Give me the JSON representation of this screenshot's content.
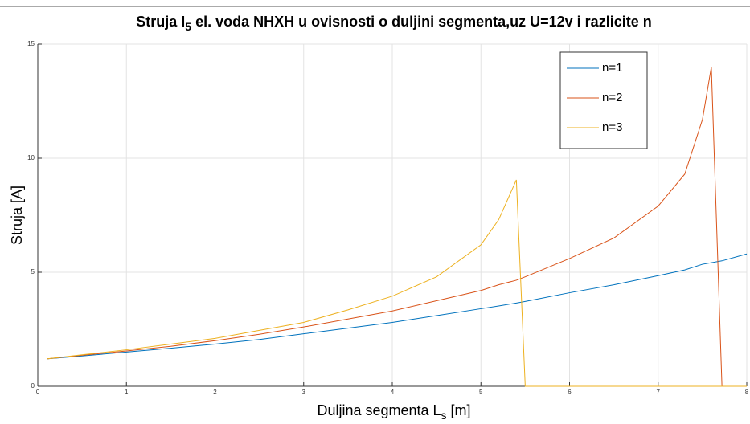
{
  "chart_data": {
    "type": "line",
    "title": [
      "Struja I",
      "5",
      " el. voda NHXH u ovisnosti o duljini segmenta,uz U=12v i razlicite n"
    ],
    "xlabel": [
      "Duljina segmenta L",
      "s",
      " [m]"
    ],
    "ylabel": "Struja [A]",
    "x": [
      0.1,
      0.5,
      1,
      1.5,
      2,
      2.5,
      3,
      3.5,
      4,
      4.5,
      5,
      5.2,
      5.4,
      5.5,
      6,
      6.5,
      7,
      7.3,
      7.5,
      7.6,
      7.72,
      8
    ],
    "series": [
      {
        "name": "n=1",
        "color": "#0072bd",
        "values": [
          1.2,
          1.33,
          1.5,
          1.67,
          1.85,
          2.05,
          2.3,
          2.55,
          2.8,
          3.1,
          3.4,
          3.52,
          3.65,
          3.72,
          4.1,
          4.45,
          4.85,
          5.1,
          5.35,
          5.42,
          5.5,
          5.8
        ]
      },
      {
        "name": "n=2",
        "color": "#d95319",
        "values": [
          1.2,
          1.36,
          1.55,
          1.75,
          2.0,
          2.28,
          2.6,
          2.95,
          3.3,
          3.75,
          4.2,
          4.45,
          4.65,
          4.8,
          5.6,
          6.5,
          7.9,
          9.3,
          11.7,
          14.0,
          0,
          0
        ]
      },
      {
        "name": "n=3",
        "color": "#edb120",
        "values": [
          1.2,
          1.38,
          1.6,
          1.85,
          2.1,
          2.45,
          2.8,
          3.35,
          3.95,
          4.8,
          6.2,
          7.3,
          9.05,
          0,
          0,
          0,
          0,
          0,
          0,
          0,
          0,
          0
        ]
      }
    ],
    "xlim": [
      0,
      8
    ],
    "xticks": [
      0,
      1,
      2,
      3,
      4,
      5,
      6,
      7,
      8
    ],
    "ylim": [
      0,
      15
    ],
    "yticks": [
      0,
      5,
      10,
      15
    ],
    "grid": true,
    "legend": "top-right"
  }
}
